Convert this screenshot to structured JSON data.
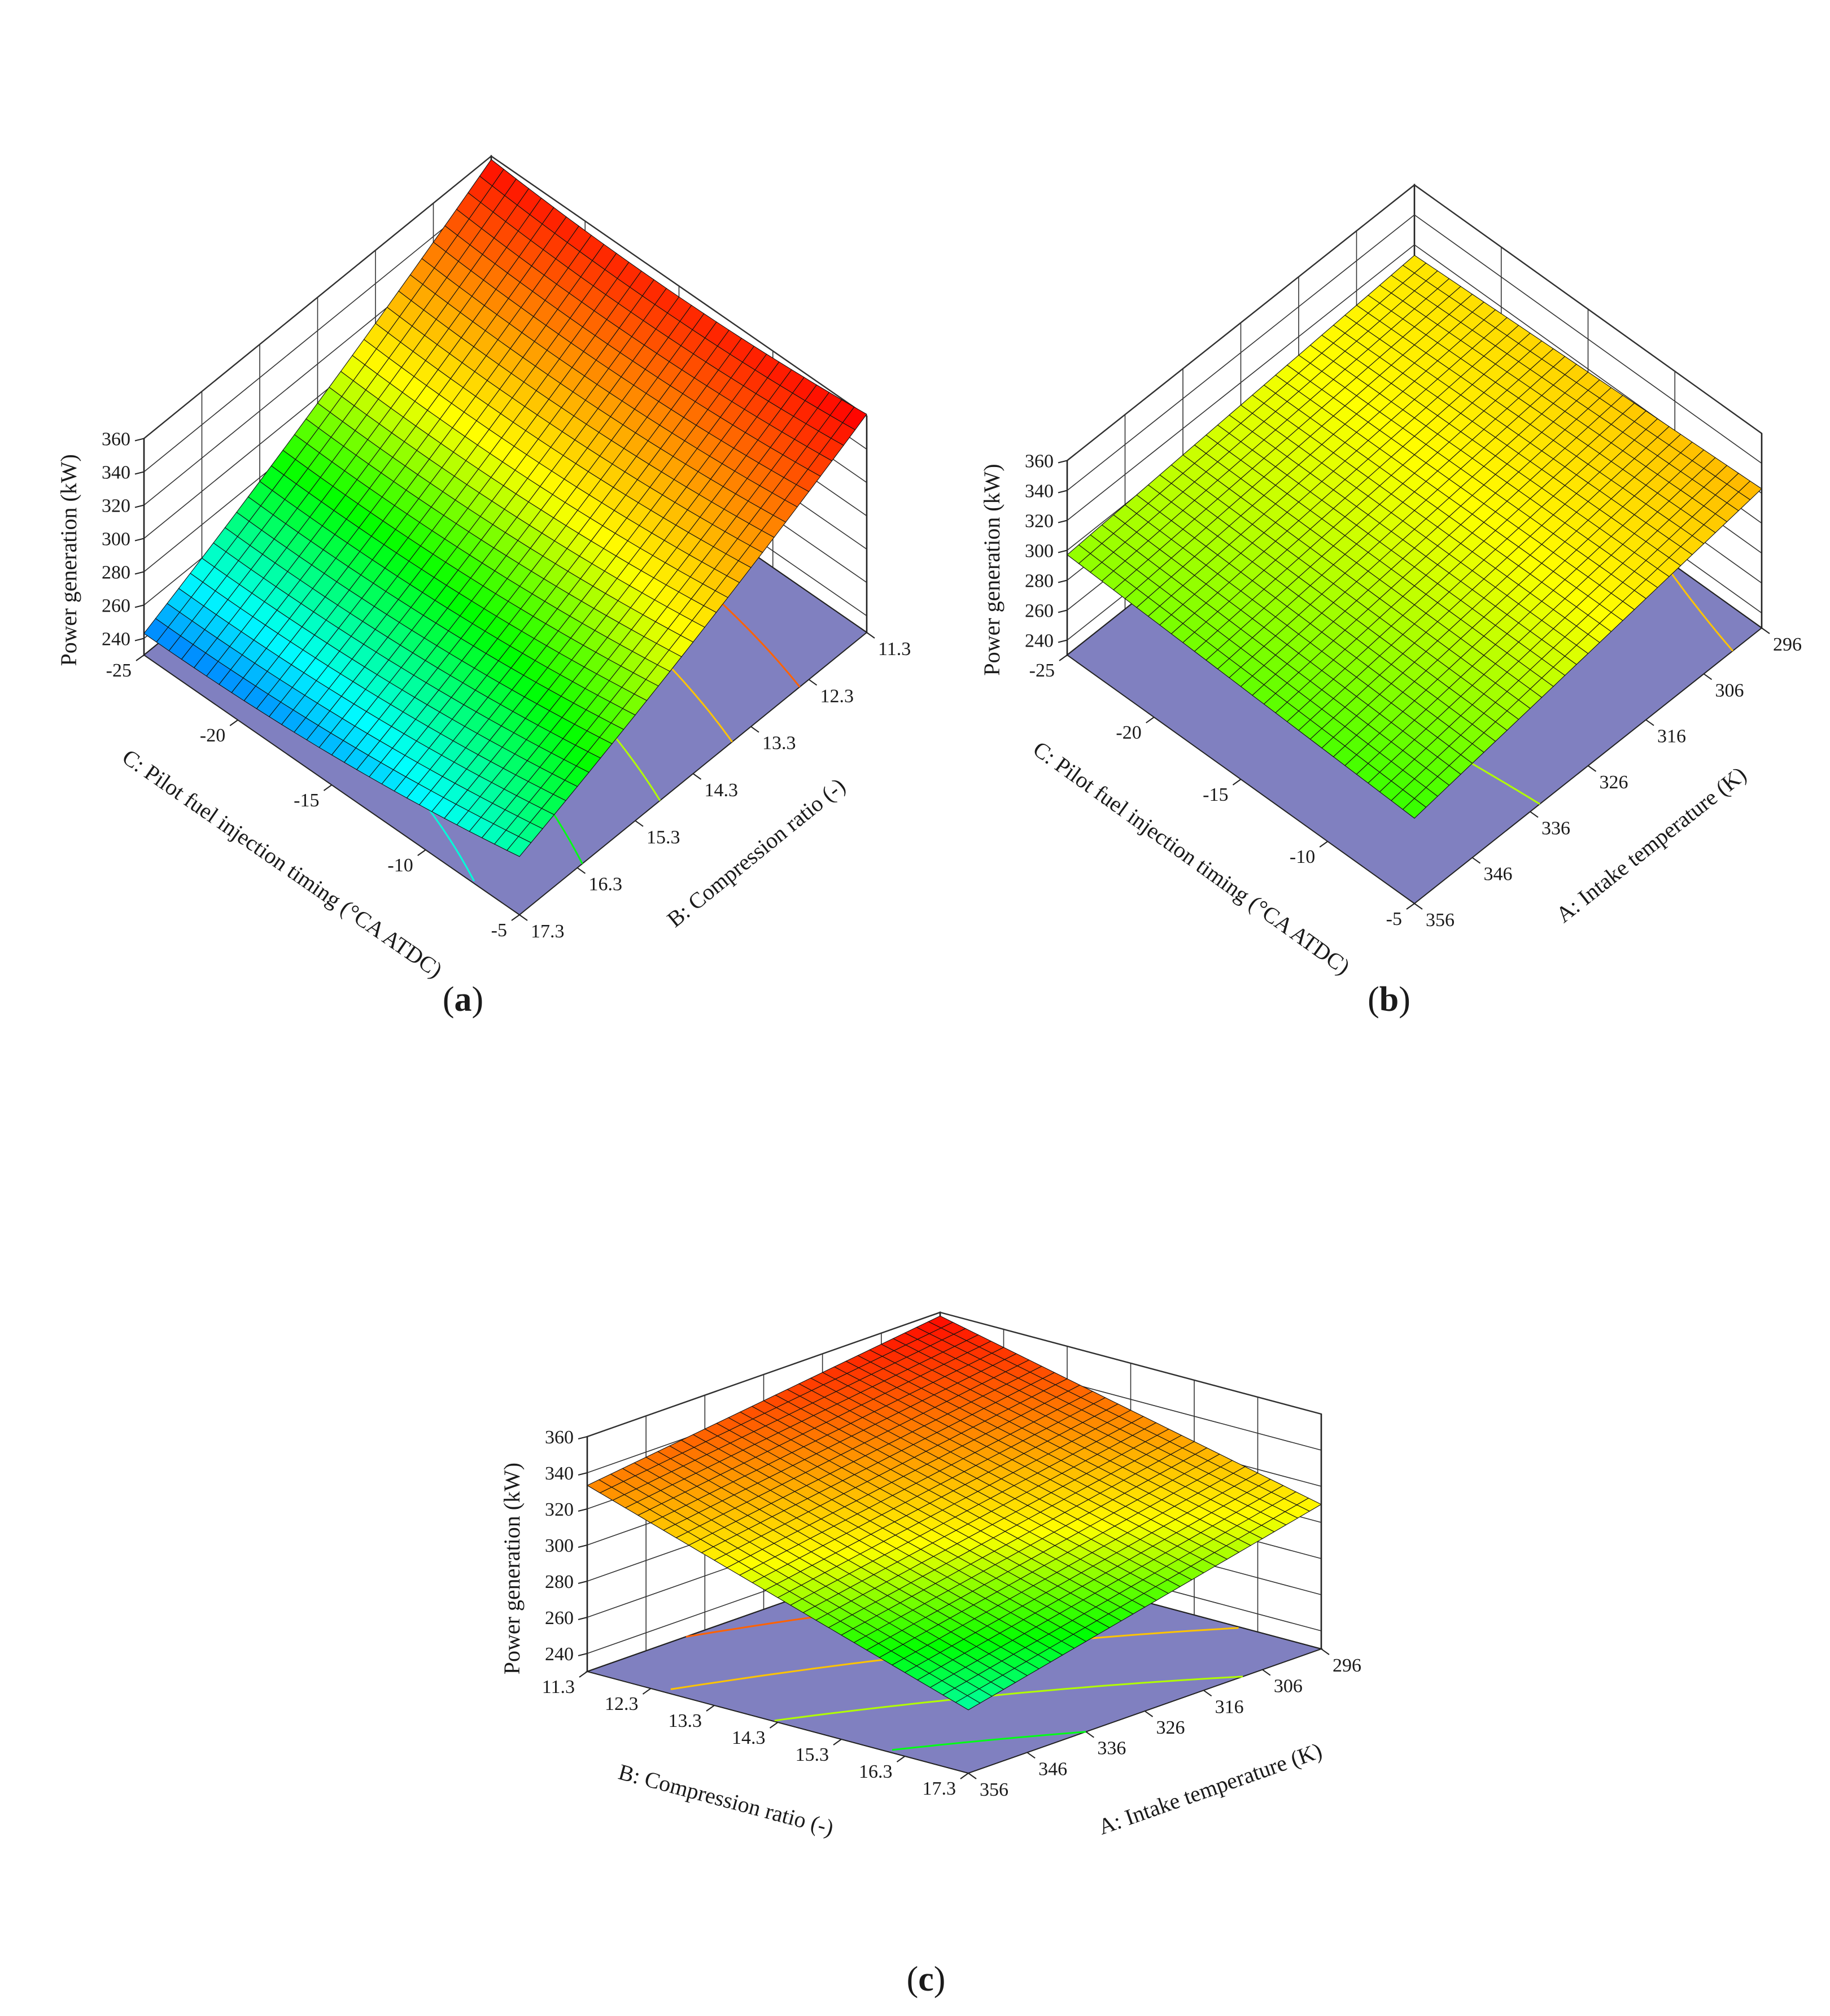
{
  "figure": {
    "type": "response-surface-3d",
    "colorscale": [
      "#0000ff",
      "#00ffff",
      "#00ff00",
      "#ffff00",
      "#ff8000",
      "#ff0000"
    ],
    "floor_color": "#8080c0"
  },
  "chart_data": [
    {
      "type": "surface",
      "panel_label": "a",
      "zlabel": "Power generation (kW)",
      "zlim": [
        230,
        360
      ],
      "zticks": [
        "240",
        "260",
        "280",
        "300",
        "320",
        "340",
        "360"
      ],
      "u": {
        "label": "C: Pilot fuel injection timing (°CA ATDC)",
        "range": [
          -25,
          -5
        ],
        "ticks": [
          "-25",
          "-20",
          "-15",
          "-10",
          "-5"
        ]
      },
      "v": {
        "label": "B: Compression ratio (-)",
        "range": [
          17.3,
          11.3
        ],
        "ticks": [
          "17.3",
          "16.3",
          "15.3",
          "14.3",
          "13.3",
          "12.3",
          "11.3"
        ]
      },
      "corner_values": {
        "u0v0": 233,
        "u1v0": 255,
        "u0v1": 348,
        "u1v1": 351
      },
      "curvature": {
        "u": 12,
        "v": 8
      },
      "contour_levels": [
        260,
        280,
        300,
        320,
        340
      ]
    },
    {
      "type": "surface",
      "panel_label": "b",
      "zlabel": "Power generation (kW)",
      "zlim": [
        230,
        360
      ],
      "zticks": [
        "240",
        "260",
        "280",
        "300",
        "320",
        "340",
        "360"
      ],
      "u": {
        "label": "C: Pilot fuel injection timing (°CA ATDC)",
        "range": [
          -25,
          -5
        ],
        "ticks": [
          "-25",
          "-20",
          "-15",
          "-10",
          "-5"
        ]
      },
      "v": {
        "label": "A: Intake temperature (K)",
        "range": [
          356,
          296
        ],
        "ticks": [
          "356",
          "346",
          "336",
          "326",
          "316",
          "306",
          "296"
        ]
      },
      "corner_values": {
        "u0v0": 297,
        "u1v0": 287,
        "u0v1": 313,
        "u1v1": 323
      },
      "curvature": {
        "u": 0,
        "v": 0
      },
      "contour_levels": [
        300,
        320
      ]
    },
    {
      "type": "surface",
      "panel_label": "c",
      "zlabel": "Power generation (kW)",
      "zlim": [
        230,
        360
      ],
      "zticks": [
        "240",
        "260",
        "280",
        "300",
        "320",
        "340",
        "360"
      ],
      "u": {
        "label": "B: Compression ratio (-)",
        "range": [
          11.3,
          17.3
        ],
        "ticks": [
          "11.3",
          "12.3",
          "13.3",
          "14.3",
          "15.3",
          "16.3",
          "17.3"
        ]
      },
      "v": {
        "label": "A: Intake temperature (K)",
        "range": [
          356,
          296
        ],
        "ticks": [
          "356",
          "346",
          "336",
          "326",
          "316",
          "306",
          "296"
        ]
      },
      "corner_values": {
        "u0v0": 333,
        "u1v0": 265,
        "u0v1": 358,
        "u1v1": 310
      },
      "curvature": {
        "u": 0,
        "v": 0
      },
      "contour_levels": [
        280,
        300,
        320,
        340
      ]
    }
  ]
}
